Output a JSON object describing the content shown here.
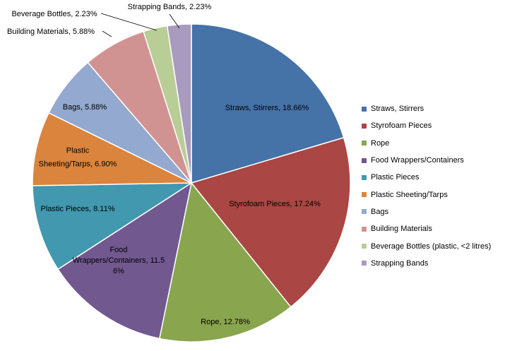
{
  "chart_data": {
    "type": "pie",
    "title": "",
    "legend_position": "right",
    "slices": [
      {
        "label": "Straws, Stirrers",
        "value": 18.66,
        "data_label": "Straws, Stirrers, 18.66%",
        "color": "#4572A7"
      },
      {
        "label": "Styrofoam Pieces",
        "value": 17.24,
        "data_label": "Styrofoam Pieces, 17.24%",
        "color": "#AA4643"
      },
      {
        "label": "Rope",
        "value": 12.78,
        "data_label": "Rope, 12.78%",
        "color": "#89A54E"
      },
      {
        "label": "Food Wrappers/Containers",
        "value": 11.56,
        "data_label": "Food Wrappers/Containers, 11.56%",
        "color": "#71588F"
      },
      {
        "label": "Plastic Pieces",
        "value": 8.11,
        "data_label": "Plastic Pieces, 8.11%",
        "color": "#4198AF"
      },
      {
        "label": "Plastic Sheeting/Tarps",
        "value": 6.9,
        "data_label": "Plastic Sheeting/Tarps, 6.90%",
        "color": "#DB843D"
      },
      {
        "label": "Bags",
        "value": 5.88,
        "data_label": "Bags, 5.88%",
        "color": "#93A9CF"
      },
      {
        "label": "Building Materials",
        "value": 5.88,
        "data_label": "Building Materials, 5.88%",
        "color": "#D19392"
      },
      {
        "label": "Beverage Bottles (plastic, <2 litres)",
        "value": 2.23,
        "data_label": "Beverage Bottles, 2.23%",
        "color": "#B9CD96"
      },
      {
        "label": "Strapping Bands",
        "value": 2.23,
        "data_label": "Strapping Bands, 2.23%",
        "color": "#A99BBD"
      }
    ]
  }
}
